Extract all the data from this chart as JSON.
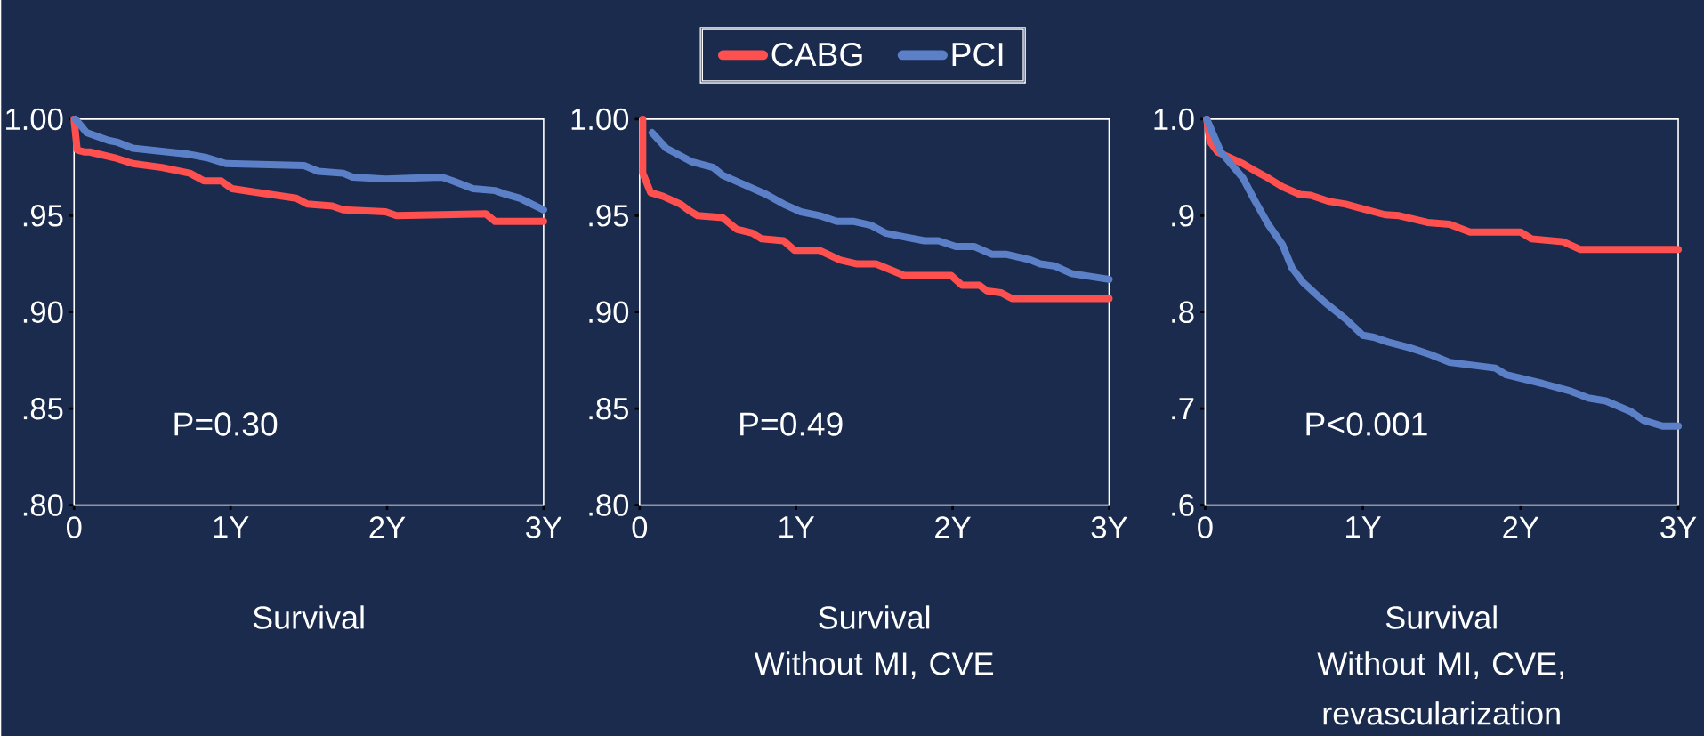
{
  "chart_data": [
    {
      "type": "line",
      "title": "Survival",
      "annotations": [
        "P=0.30"
      ],
      "legend": "top",
      "xlim": [
        0,
        3
      ],
      "ylim": [
        0.8,
        1.0
      ],
      "xticks": [
        0,
        {
          "value": 1,
          "label": "1Y"
        },
        {
          "value": 2,
          "label": "2Y"
        },
        {
          "value": 3,
          "label": "3Y"
        }
      ],
      "yticks": [
        {
          "value": 0.8,
          "label": ".80"
        },
        {
          "value": 0.85,
          "label": ".85"
        },
        {
          "value": 0.9,
          "label": ".90"
        },
        {
          "value": 0.95,
          "label": ".95"
        },
        {
          "value": 1.0,
          "label": "1.00"
        }
      ],
      "series": [
        {
          "name": "CABG",
          "color": "#ff5050",
          "x": [
            0,
            0.02,
            0.07,
            0.1,
            0.26,
            0.375,
            0.56,
            0.74,
            0.83,
            0.94,
            1.01,
            1.17,
            1.42,
            1.49,
            1.65,
            1.72,
            1.99,
            2.06,
            2.63,
            2.69,
            3.0
          ],
          "values": [
            1.0,
            0.984,
            0.983,
            0.983,
            0.98,
            0.977,
            0.975,
            0.972,
            0.968,
            0.968,
            0.964,
            0.962,
            0.959,
            0.956,
            0.955,
            0.953,
            0.952,
            0.95,
            0.951,
            0.947,
            0.947
          ]
        },
        {
          "name": "PCI",
          "color": "#5b80c8",
          "x": [
            0.01,
            0.08,
            0.22,
            0.28,
            0.375,
            0.72,
            0.85,
            0.97,
            1.47,
            1.56,
            1.72,
            1.78,
            1.99,
            2.35,
            2.42,
            2.55,
            2.69,
            2.76,
            2.85,
            3.0
          ],
          "values": [
            1.0,
            0.993,
            0.989,
            0.988,
            0.985,
            0.982,
            0.98,
            0.977,
            0.976,
            0.973,
            0.972,
            0.97,
            0.969,
            0.97,
            0.968,
            0.964,
            0.963,
            0.961,
            0.959,
            0.953
          ]
        }
      ]
    },
    {
      "type": "line",
      "title": "Survival",
      "subtitle": "Without MI, CVE",
      "annotations": [
        "P=0.49"
      ],
      "xlim": [
        0,
        3
      ],
      "ylim": [
        0.8,
        1.0
      ],
      "xticks": [
        0,
        {
          "value": 1,
          "label": "1Y"
        },
        {
          "value": 2,
          "label": "2Y"
        },
        {
          "value": 3,
          "label": "3Y"
        }
      ],
      "yticks": [
        {
          "value": 0.8,
          "label": ".80"
        },
        {
          "value": 0.85,
          "label": ".85"
        },
        {
          "value": 0.9,
          "label": ".90"
        },
        {
          "value": 0.95,
          "label": ".95"
        },
        {
          "value": 1.0,
          "label": "1.00"
        }
      ],
      "series": [
        {
          "color": "#ff5050",
          "x": [
            0.02,
            0.02,
            0.07,
            0.15,
            0.26,
            0.31,
            0.37,
            0.53,
            0.62,
            0.72,
            0.78,
            0.92,
            0.99,
            1.15,
            1.28,
            1.39,
            1.51,
            1.6,
            1.69,
            1.99,
            2.06,
            2.17,
            2.22,
            2.31,
            2.38,
            3.0
          ],
          "values": [
            1.0,
            0.972,
            0.962,
            0.96,
            0.956,
            0.953,
            0.95,
            0.949,
            0.943,
            0.941,
            0.938,
            0.937,
            0.932,
            0.932,
            0.927,
            0.925,
            0.925,
            0.922,
            0.919,
            0.919,
            0.914,
            0.914,
            0.911,
            0.91,
            0.907,
            0.907
          ]
        },
        {
          "color": "#5b80c8",
          "x": [
            0.08,
            0.17,
            0.24,
            0.33,
            0.47,
            0.53,
            0.67,
            0.81,
            0.92,
            1.03,
            1.15,
            1.26,
            1.37,
            1.48,
            1.57,
            1.69,
            1.82,
            1.91,
            2.02,
            2.14,
            2.25,
            2.34,
            2.5,
            2.56,
            2.65,
            2.76,
            3.0
          ],
          "values": [
            0.993,
            0.985,
            0.982,
            0.978,
            0.975,
            0.971,
            0.966,
            0.961,
            0.956,
            0.952,
            0.95,
            0.947,
            0.947,
            0.945,
            0.941,
            0.939,
            0.937,
            0.937,
            0.934,
            0.934,
            0.93,
            0.93,
            0.927,
            0.925,
            0.924,
            0.92,
            0.917
          ]
        }
      ]
    },
    {
      "type": "line",
      "title": "Survival",
      "subtitle": "Without MI, CVE, revascularization",
      "annotations": [
        "P<0.001"
      ],
      "xlim": [
        0,
        3
      ],
      "ylim": [
        0.6,
        1.0
      ],
      "xticks": [
        0,
        {
          "value": 1,
          "label": "1Y"
        },
        {
          "value": 2,
          "label": "2Y"
        },
        {
          "value": 3,
          "label": "3Y"
        }
      ],
      "yticks": [
        {
          "value": 0.6,
          "label": ".6"
        },
        {
          "value": 0.7,
          "label": ".7"
        },
        {
          "value": 0.8,
          "label": ".8"
        },
        {
          "value": 0.9,
          "label": ".9"
        },
        {
          "value": 1.0,
          "label": "1.0"
        }
      ],
      "series": [
        {
          "color": "#ff5050",
          "x": [
            0.01,
            0.03,
            0.08,
            0.24,
            0.31,
            0.4,
            0.49,
            0.6,
            0.67,
            0.78,
            0.89,
            1.14,
            1.23,
            1.41,
            1.55,
            1.68,
            2.0,
            2.07,
            2.27,
            2.38,
            3.0
          ],
          "values": [
            1.0,
            0.977,
            0.966,
            0.954,
            0.947,
            0.939,
            0.93,
            0.922,
            0.921,
            0.915,
            0.912,
            0.901,
            0.9,
            0.893,
            0.891,
            0.883,
            0.883,
            0.876,
            0.873,
            0.865,
            0.865
          ]
        },
        {
          "color": "#5b80c8",
          "x": [
            0.01,
            0.1,
            0.24,
            0.31,
            0.4,
            0.49,
            0.55,
            0.62,
            0.76,
            0.89,
            1.0,
            1.07,
            1.16,
            1.3,
            1.43,
            1.55,
            1.84,
            1.91,
            2.14,
            2.32,
            2.43,
            2.54,
            2.7,
            2.78,
            2.9,
            3.0
          ],
          "values": [
            1.0,
            0.966,
            0.939,
            0.917,
            0.891,
            0.87,
            0.846,
            0.831,
            0.81,
            0.793,
            0.776,
            0.774,
            0.769,
            0.763,
            0.756,
            0.748,
            0.742,
            0.735,
            0.726,
            0.718,
            0.711,
            0.708,
            0.697,
            0.688,
            0.682,
            0.682
          ]
        }
      ]
    }
  ]
}
